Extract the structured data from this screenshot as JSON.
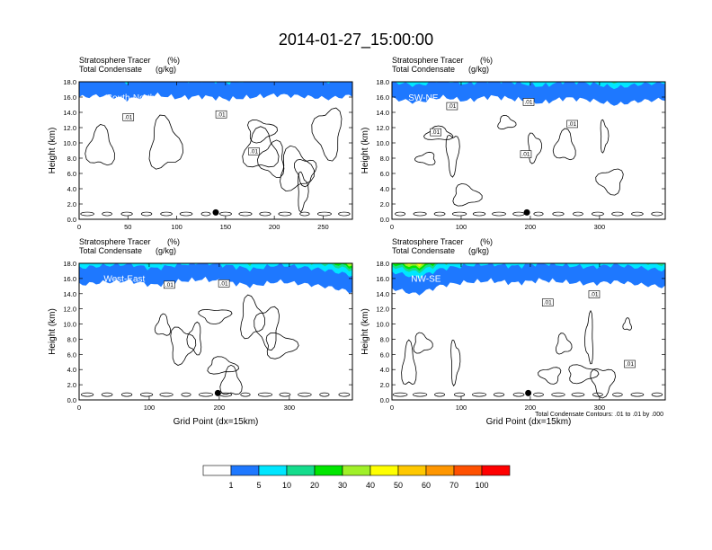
{
  "figure": {
    "title": "2014-01-27_15:00:00",
    "contour_note": "Total Condensate Contours: .01 to .01 by .000"
  },
  "chart_data": [
    {
      "type": "heatmap",
      "panel": "South-North",
      "header": {
        "line1_name": "Stratosphere Tracer",
        "line1_units": "(%)",
        "line2_name": "Total Condensate",
        "line2_units": "(g/kg)"
      },
      "xlabel": "",
      "ylabel": "Height (km)",
      "xlim": [
        0,
        280
      ],
      "ylim": [
        0,
        18
      ],
      "xticks": [
        "0",
        "50",
        "100",
        "150",
        "200",
        "250"
      ],
      "yticks": [
        "0.0",
        "2.0",
        "4.0",
        "6.0",
        "8.0",
        "10.0",
        "12.0",
        "14.0",
        "16.0",
        "18.0"
      ],
      "contour_labels": [
        ".01",
        ".01",
        ".01"
      ],
      "marker_x": 140,
      "tracer_top_km": [
        16.3,
        16.5,
        16.0,
        16.6,
        16.2,
        16.4,
        16.0,
        16.3,
        16.6,
        16.4,
        16.1,
        16.5
      ]
    },
    {
      "type": "heatmap",
      "panel": "SW-NE",
      "header": {
        "line1_name": "Stratosphere Tracer",
        "line1_units": "(%)",
        "line2_name": "Total Condensate",
        "line2_units": "(g/kg)"
      },
      "xlabel": "",
      "ylabel": "Height (km)",
      "xlim": [
        0,
        395
      ],
      "ylim": [
        0,
        18
      ],
      "xticks": [
        "0",
        "100",
        "200",
        "300"
      ],
      "yticks": [
        "0.0",
        "2.0",
        "4.0",
        "6.0",
        "8.0",
        "10.0",
        "12.0",
        "14.0",
        "16.0",
        "18.0"
      ],
      "contour_labels": [
        ".01",
        ".01",
        ".01",
        ".01",
        ".01"
      ],
      "marker_x": 195,
      "tracer_top_km": [
        16.1,
        15.6,
        16.3,
        15.8,
        16.4,
        16.0,
        15.5,
        16.2,
        15.9,
        15.3,
        15.8,
        16.0
      ]
    },
    {
      "type": "heatmap",
      "panel": "West-East",
      "header": {
        "line1_name": "Stratosphere Tracer",
        "line1_units": "(%)",
        "line2_name": "Total Condensate",
        "line2_units": "(g/kg)"
      },
      "xlabel": "Grid Point (dx=15km)",
      "ylabel": "Height (km)",
      "xlim": [
        0,
        390
      ],
      "ylim": [
        0,
        18
      ],
      "xticks": [
        "0",
        "100",
        "200",
        "300"
      ],
      "yticks": [
        "0.0",
        "2.0",
        "4.0",
        "6.0",
        "8.0",
        "10.0",
        "12.0",
        "14.0",
        "16.0",
        "18.0"
      ],
      "contour_labels": [
        ".01",
        ".01"
      ],
      "marker_x": 198,
      "tracer_top_km": [
        15.5,
        15.8,
        16.0,
        15.4,
        15.9,
        16.2,
        15.8,
        15.3,
        15.9,
        15.6,
        15.2,
        14.5
      ]
    },
    {
      "type": "heatmap",
      "panel": "NW-SE",
      "header": {
        "line1_name": "Stratosphere Tracer",
        "line1_units": "(%)",
        "line2_name": "Total Condensate",
        "line2_units": "(g/kg)"
      },
      "xlabel": "Grid Point (dx=15km)",
      "ylabel": "Height (km)",
      "xlim": [
        0,
        395
      ],
      "ylim": [
        0,
        18
      ],
      "xticks": [
        "0",
        "100",
        "200",
        "300"
      ],
      "yticks": [
        "0.0",
        "2.0",
        "4.0",
        "6.0",
        "8.0",
        "10.0",
        "12.0",
        "14.0",
        "16.0",
        "18.0"
      ],
      "contour_labels": [
        ".01",
        ".01",
        ".01"
      ],
      "marker_x": 197,
      "tracer_top_km": [
        15.0,
        14.2,
        15.4,
        15.8,
        16.0,
        15.7,
        16.1,
        15.8,
        15.6,
        15.9,
        15.5,
        15.2
      ]
    }
  ],
  "colorbar": {
    "labels": [
      "1",
      "5",
      "10",
      "20",
      "30",
      "40",
      "50",
      "60",
      "70",
      "100"
    ],
    "colors": [
      "#ffffff",
      "#1e78ff",
      "#00e6ff",
      "#14dc8c",
      "#00e600",
      "#a0f028",
      "#ffff00",
      "#ffc800",
      "#ff9600",
      "#ff5000",
      "#ff0000"
    ]
  }
}
